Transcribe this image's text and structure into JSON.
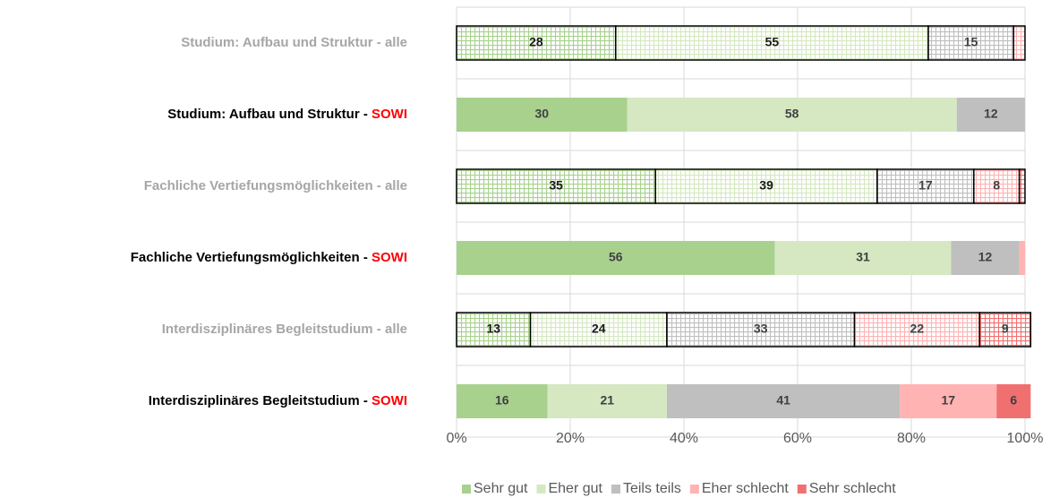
{
  "chart_data": {
    "type": "stacked_barh",
    "categories": [
      "Studium: Aufbau und Struktur - alle",
      "Studium: Aufbau und Struktur - SOWI",
      "Fachliche Vertiefungsmöglichkeiten - alle",
      "Fachliche Vertiefungsmöglichkeiten - SOWI",
      "Interdisziplinäres Begleitstudium - alle",
      "Interdisziplinäres Begleitstudium - SOWI"
    ],
    "category_styles": [
      "muted",
      "highlight",
      "muted",
      "highlight",
      "muted",
      "highlight"
    ],
    "series": [
      {
        "name": "Sehr gut",
        "color": "#a9d18e",
        "values": [
          28,
          30,
          35,
          56,
          13,
          16
        ]
      },
      {
        "name": "Eher gut",
        "color": "#d5e8c1",
        "values": [
          55,
          58,
          39,
          31,
          24,
          21
        ]
      },
      {
        "name": "Teils teils",
        "color": "#bfbfbf",
        "values": [
          15,
          12,
          17,
          12,
          33,
          41
        ]
      },
      {
        "name": "Eher schlecht",
        "color": "#ffb3b3",
        "values": [
          2,
          0,
          8,
          1,
          22,
          17
        ],
        "value_labels": [
          null,
          null,
          "8",
          null,
          "22",
          "17"
        ]
      },
      {
        "name": "Sehr schlecht",
        "color": "#f07070",
        "values": [
          0,
          0,
          1,
          0,
          9,
          6
        ],
        "value_labels": [
          null,
          null,
          null,
          null,
          "9",
          "6"
        ]
      }
    ],
    "xlim": [
      0,
      100
    ],
    "xticks": [
      {
        "value": 0,
        "label": "0%"
      },
      {
        "value": 20,
        "label": "20%"
      },
      {
        "value": 40,
        "label": "40%"
      },
      {
        "value": 60,
        "label": "60%"
      },
      {
        "value": 80,
        "label": "80%"
      },
      {
        "value": 100,
        "label": "100%"
      }
    ],
    "grid": true,
    "legend": "bottom"
  }
}
